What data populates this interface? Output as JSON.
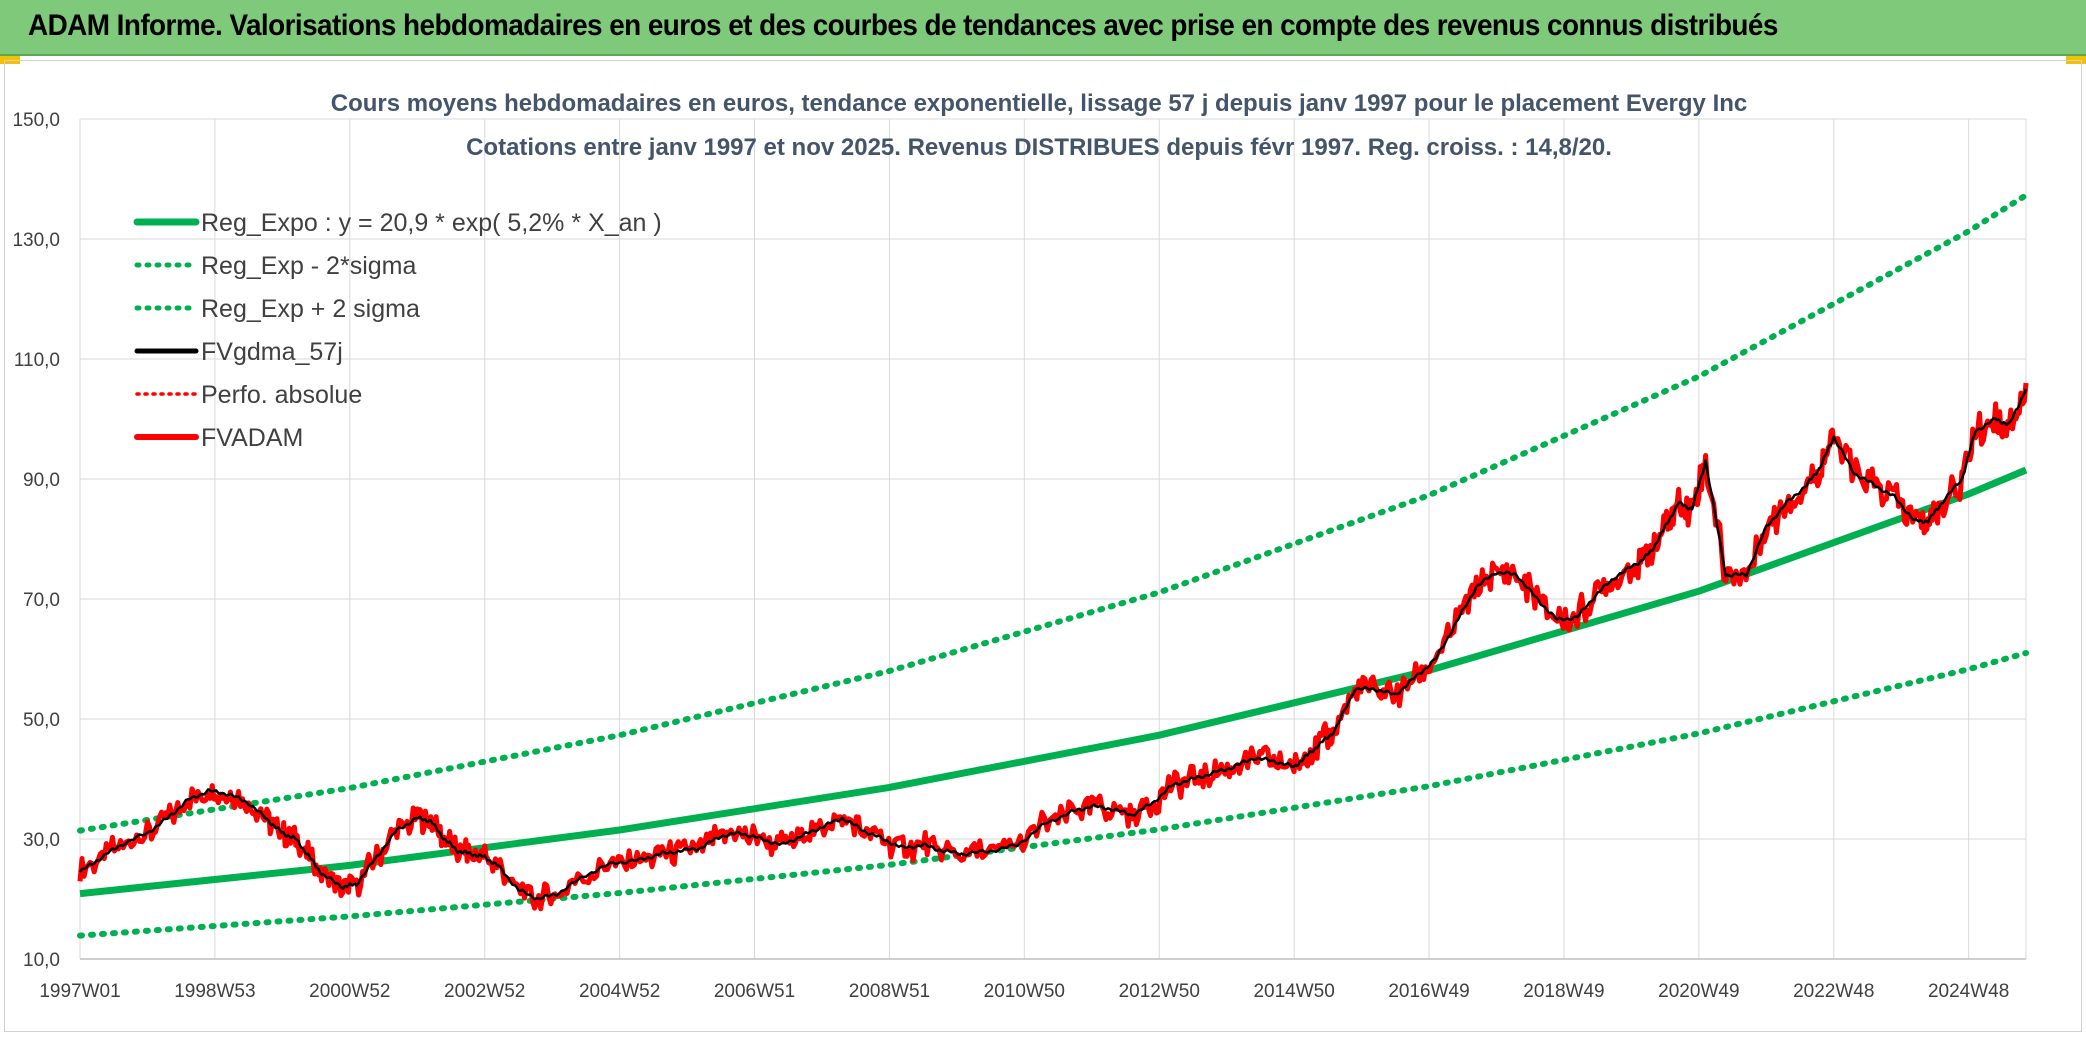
{
  "header": {
    "banner": "ADAM Informe. Valorisations hebdomadaires en euros et des courbes de tendances avec prise en compte des revenus connus distribués"
  },
  "colors": {
    "banner_bg": "#7ec97a",
    "reg": "#00b050",
    "fvgdma": "#000000",
    "fvadam": "#ff0000",
    "perfo": "#ff0000"
  },
  "chart_data": {
    "type": "line",
    "title": "Cours moyens hebdomadaires en euros, tendance exponentielle, lissage 57 j depuis janv 1997 pour le placement Evergy Inc",
    "subtitle": "Cotations entre janv 1997 et nov 2025. Revenus DISTRIBUES depuis févr 1997. Reg. croiss. : 14,8/20.",
    "x_range": [
      1997.0,
      2025.85
    ],
    "ylim": [
      10,
      150
    ],
    "y_ticks": [
      "10,0",
      "30,0",
      "50,0",
      "70,0",
      "90,0",
      "110,0",
      "130,0",
      "150,0"
    ],
    "x_ticks": [
      {
        "label": "1997W01",
        "x": 1997.0
      },
      {
        "label": "1998W53",
        "x": 1999.0
      },
      {
        "label": "2000W52",
        "x": 2001.0
      },
      {
        "label": "2002W52",
        "x": 2003.0
      },
      {
        "label": "2004W52",
        "x": 2005.0
      },
      {
        "label": "2006W51",
        "x": 2007.0
      },
      {
        "label": "2008W51",
        "x": 2009.0
      },
      {
        "label": "2010W50",
        "x": 2011.0
      },
      {
        "label": "2012W50",
        "x": 2013.0
      },
      {
        "label": "2014W50",
        "x": 2015.0
      },
      {
        "label": "2016W49",
        "x": 2017.0
      },
      {
        "label": "2018W49",
        "x": 2019.0
      },
      {
        "label": "2020W49",
        "x": 2021.0
      },
      {
        "label": "2022W48",
        "x": 2023.0
      },
      {
        "label": "2024W48",
        "x": 2025.0
      }
    ],
    "grid": true,
    "legend_position": "top-left",
    "legend": [
      "Reg_Expo : y = 20,9 * exp( 5,2% *  X_an )",
      "Reg_Exp - 2*sigma",
      "Reg_Exp + 2 sigma",
      "FVgdma_57j",
      "Perfo. absolue",
      "FVADAM"
    ],
    "series": [
      {
        "name": "Reg_Expo : y = 20,9 * exp( 5,2% *  X_an )",
        "x": [
          1997.0,
          2001.0,
          2005.0,
          2009.0,
          2013.0,
          2017.0,
          2021.0,
          2025.0,
          2025.85
        ],
        "y": [
          20.9,
          25.6,
          31.5,
          38.6,
          47.3,
          58.1,
          71.3,
          87.5,
          91.5
        ]
      },
      {
        "name": "Reg_Exp - 2*sigma",
        "x": [
          1997.0,
          2001.0,
          2005.0,
          2009.0,
          2013.0,
          2017.0,
          2021.0,
          2025.0,
          2025.85
        ],
        "y": [
          13.9,
          17.1,
          21.0,
          25.7,
          31.6,
          38.8,
          47.6,
          58.3,
          61.0
        ]
      },
      {
        "name": "Reg_Exp + 2 sigma",
        "x": [
          1997.0,
          2001.0,
          2005.0,
          2009.0,
          2013.0,
          2017.0,
          2021.0,
          2025.0,
          2025.85
        ],
        "y": [
          31.4,
          38.5,
          47.3,
          58.0,
          71.1,
          87.3,
          107.1,
          131.3,
          137.3
        ]
      },
      {
        "name": "FVADAM",
        "x": [
          1997.0,
          1997.3,
          1997.6,
          1998.0,
          1998.3,
          1998.6,
          1998.9,
          1999.2,
          1999.5,
          1999.8,
          2000.0,
          2000.2,
          2000.4,
          2000.6,
          2000.9,
          2001.1,
          2001.4,
          2001.7,
          2002.0,
          2002.2,
          2002.4,
          2002.6,
          2002.8,
          2003.0,
          2003.2,
          2003.5,
          2003.8,
          2004.1,
          2004.5,
          2004.9,
          2005.3,
          2005.6,
          2005.9,
          2006.2,
          2006.5,
          2006.8,
          2007.1,
          2007.4,
          2007.7,
          2008.0,
          2008.3,
          2008.6,
          2008.9,
          2009.2,
          2009.5,
          2009.8,
          2010.1,
          2010.5,
          2010.9,
          2011.3,
          2011.7,
          2012.0,
          2012.3,
          2012.6,
          2012.9,
          2013.2,
          2013.5,
          2013.8,
          2014.1,
          2014.4,
          2014.7,
          2015.0,
          2015.2,
          2015.4,
          2015.6,
          2015.9,
          2016.2,
          2016.5,
          2016.8,
          2017.1,
          2017.4,
          2017.7,
          2018.0,
          2018.3,
          2018.6,
          2018.9,
          2019.2,
          2019.5,
          2019.8,
          2020.1,
          2020.3,
          2020.5,
          2020.7,
          2020.9,
          2021.1,
          2021.4,
          2021.7,
          2022.0,
          2022.3,
          2022.6,
          2022.8,
          2023.0,
          2023.3,
          2023.6,
          2023.9,
          2024.2,
          2024.4,
          2024.6,
          2024.9,
          2025.1,
          2025.4,
          2025.6,
          2025.85
        ],
        "y": [
          24.5,
          26.8,
          29.0,
          31.0,
          33.5,
          36.5,
          38.0,
          37.5,
          36.0,
          33.0,
          31.0,
          30.0,
          27.0,
          24.0,
          22.0,
          22.5,
          27.0,
          31.5,
          33.5,
          33.0,
          30.0,
          28.0,
          27.5,
          27.0,
          25.5,
          21.5,
          20.0,
          21.0,
          24.0,
          26.0,
          26.5,
          27.5,
          28.0,
          28.5,
          30.5,
          31.0,
          30.0,
          29.0,
          30.5,
          32.0,
          33.5,
          31.5,
          30.0,
          28.5,
          29.0,
          28.0,
          27.5,
          28.0,
          29.0,
          32.5,
          34.5,
          35.5,
          35.0,
          34.0,
          36.0,
          39.0,
          40.0,
          41.0,
          42.0,
          43.5,
          43.0,
          42.0,
          44.0,
          46.0,
          48.0,
          55.0,
          55.0,
          54.0,
          57.0,
          60.0,
          66.0,
          72.0,
          74.5,
          74.0,
          70.0,
          66.5,
          67.0,
          71.0,
          74.0,
          76.0,
          78.0,
          82.0,
          86.0,
          85.0,
          93.0,
          74.0,
          74.0,
          82.0,
          86.0,
          89.0,
          92.0,
          97.0,
          91.0,
          89.0,
          87.0,
          83.0,
          83.0,
          86.0,
          90.0,
          98.0,
          100.0,
          99.0,
          105.0
        ]
      }
    ]
  }
}
